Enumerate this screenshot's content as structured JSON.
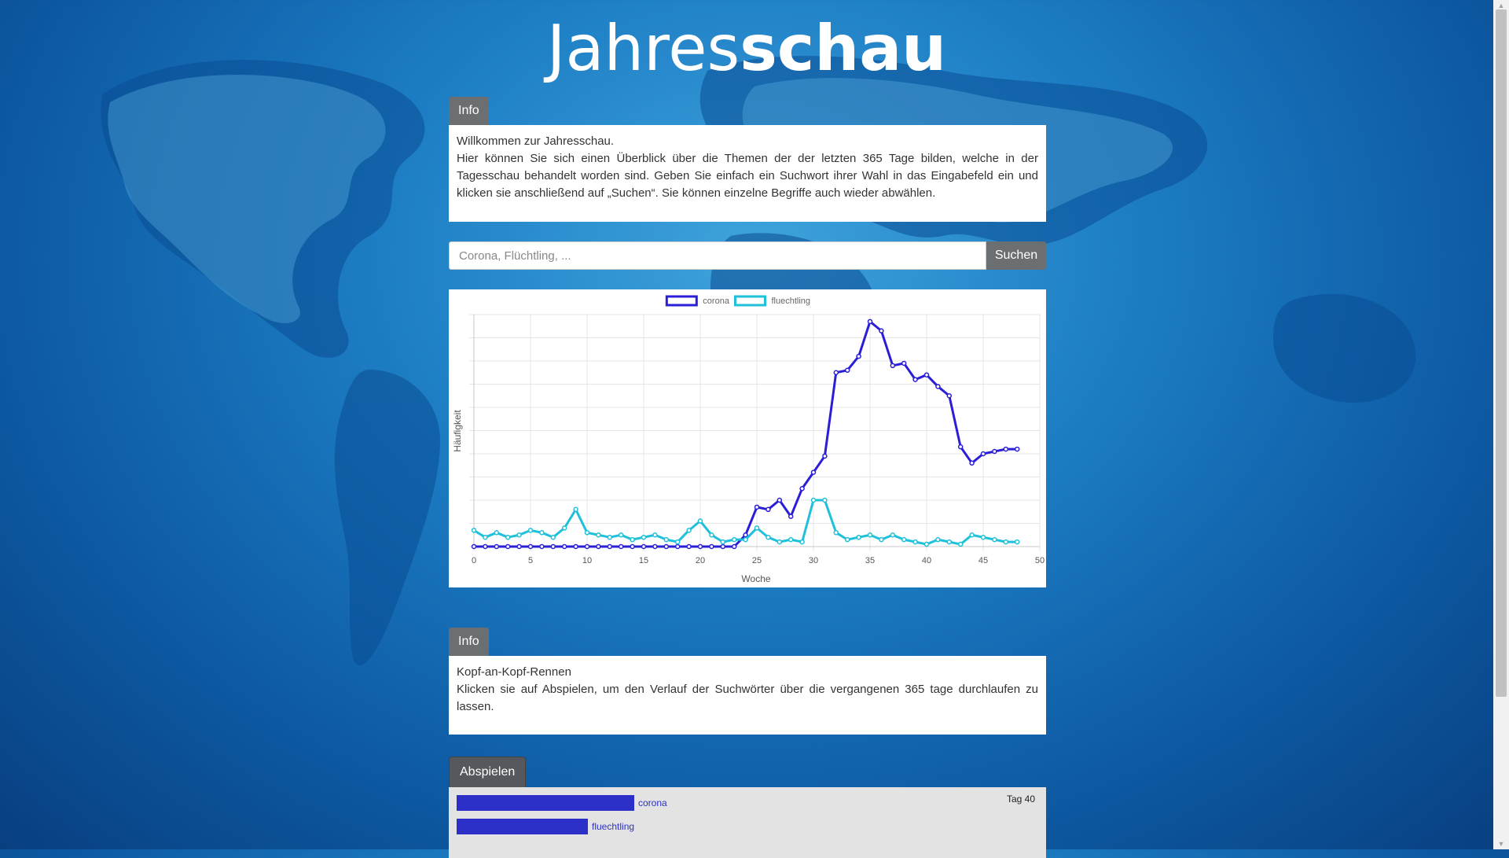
{
  "header": {
    "title_light": "Jahres",
    "title_bold": "schau"
  },
  "info1": {
    "tab": "Info",
    "line1": "Willkommen zur Jahresschau.",
    "line2": "Hier können Sie sich einen Überblick über die Themen der der letzten 365 Tage bilden, welche in der Tagesschau behandelt worden sind. Geben Sie einfach ein Suchwort ihrer Wahl in das Eingabefeld ein und klicken sie anschließend auf „Suchen“. Sie können einzelne Begriffe auch wieder abwählen."
  },
  "search": {
    "placeholder": "Corona, Flüchtling, ...",
    "value": "",
    "button": "Suchen"
  },
  "chart_data": {
    "type": "line",
    "title": "",
    "xlabel": "Woche",
    "ylabel": "Häufigkeit",
    "xlim": [
      0,
      50
    ],
    "ylim": [
      0,
      100
    ],
    "x_ticks": [
      "0",
      "5",
      "10",
      "15",
      "20",
      "25",
      "30",
      "35",
      "40",
      "45",
      "50"
    ],
    "grid": true,
    "legend_position": "top",
    "series": [
      {
        "name": "corona",
        "color": "#2a1ed6",
        "x": [
          0,
          1,
          2,
          3,
          4,
          5,
          6,
          7,
          8,
          9,
          10,
          11,
          12,
          13,
          14,
          15,
          16,
          17,
          18,
          19,
          20,
          21,
          22,
          23,
          24,
          25,
          26,
          27,
          28,
          29,
          30,
          31,
          32,
          33,
          34,
          35,
          36,
          37,
          38,
          39,
          40,
          41,
          42,
          43,
          44,
          45,
          46,
          47,
          48
        ],
        "values": [
          0,
          0,
          0,
          0,
          0,
          0,
          0,
          0,
          0,
          0,
          0,
          0,
          0,
          0,
          0,
          0,
          0,
          0,
          0,
          0,
          0,
          0,
          0,
          0,
          5,
          17,
          16,
          20,
          13,
          25,
          32,
          39,
          75,
          76,
          82,
          97,
          93,
          78,
          79,
          72,
          74,
          69,
          65,
          43,
          36,
          40,
          41,
          42,
          42
        ]
      },
      {
        "name": "fluechtling",
        "color": "#1ec1d9",
        "x": [
          0,
          1,
          2,
          3,
          4,
          5,
          6,
          7,
          8,
          9,
          10,
          11,
          12,
          13,
          14,
          15,
          16,
          17,
          18,
          19,
          20,
          21,
          22,
          23,
          24,
          25,
          26,
          27,
          28,
          29,
          30,
          31,
          32,
          33,
          34,
          35,
          36,
          37,
          38,
          39,
          40,
          41,
          42,
          43,
          44,
          45,
          46,
          47,
          48
        ],
        "values": [
          7,
          4,
          6,
          4,
          5,
          7,
          6,
          4,
          8,
          16,
          6,
          5,
          4,
          5,
          3,
          4,
          5,
          3,
          2,
          7,
          11,
          5,
          2,
          3,
          3,
          8,
          4,
          2,
          3,
          2,
          20,
          20,
          6,
          3,
          4,
          5,
          3,
          5,
          3,
          2,
          1,
          3,
          2,
          1,
          5,
          4,
          3,
          2,
          2
        ]
      }
    ]
  },
  "info2": {
    "tab": "Info",
    "line1": "Kopf-an-Kopf-Rennen",
    "line2": "Klicken sie auf Abspielen, um den Verlauf der Suchwörter über die vergangenen 365 tage durchlaufen zu lassen."
  },
  "race": {
    "button": "Abspielen",
    "day": "Tag 40",
    "bars": [
      {
        "label": "corona",
        "value": 100
      },
      {
        "label": "fluechtling",
        "value": 74
      }
    ]
  }
}
